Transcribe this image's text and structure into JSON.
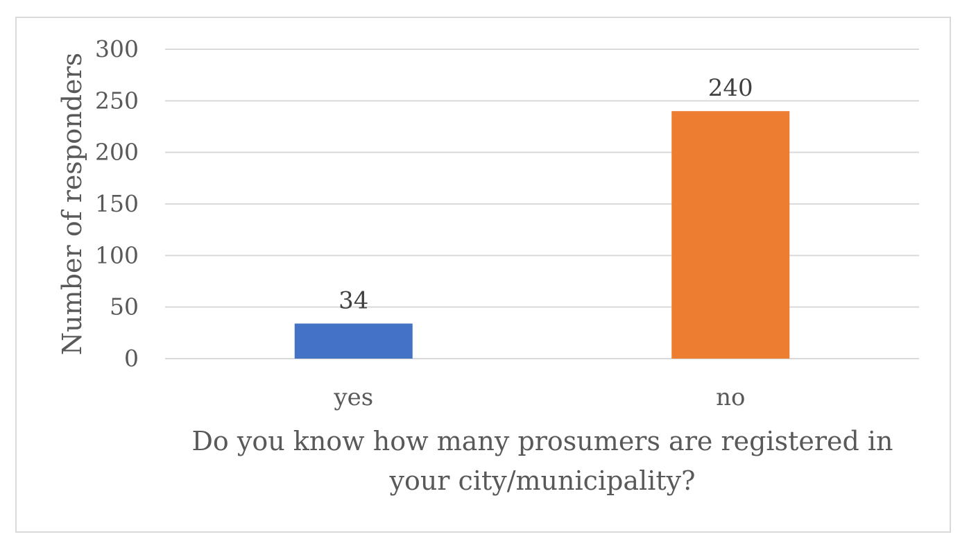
{
  "chart_data": {
    "type": "bar",
    "categories": [
      "yes",
      "no"
    ],
    "values": [
      34,
      240
    ],
    "data_labels": [
      "34",
      "240"
    ],
    "colors": [
      "#4472C4",
      "#ED7D31"
    ],
    "title": "",
    "xlabel_lines": [
      "Do you know how many prosumers are registered in",
      "your city/municipality?"
    ],
    "ylabel": "Number of responders",
    "ylim": [
      0,
      300
    ],
    "yticks": [
      0,
      50,
      100,
      150,
      200,
      250,
      300
    ],
    "ytick_labels": [
      "0",
      "50",
      "100",
      "150",
      "200",
      "250",
      "300"
    ],
    "grid": true,
    "legend": "none"
  }
}
